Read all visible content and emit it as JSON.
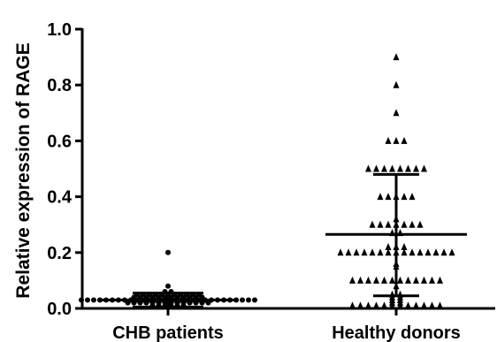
{
  "chart_data": {
    "type": "scatter",
    "title": "",
    "xlabel": "",
    "ylabel": "Relative expression of RAGE",
    "ylim": [
      0,
      1.0
    ],
    "yticks": [
      "0.0",
      "0.2",
      "0.4",
      "0.6",
      "0.8",
      "1.0"
    ],
    "categories": [
      "CHB patients",
      "Healthy donors"
    ],
    "grid": false,
    "legend": "none",
    "colors": {
      "marker": "#000000",
      "axis": "#000000"
    },
    "series": [
      {
        "category": "CHB patients",
        "marker": "circle",
        "mean": 0.03,
        "sd_upper": 0.055,
        "sd_lower": 0.005,
        "values": [
          0.2,
          0.08,
          0.06,
          0.06,
          0.05,
          0.05,
          0.05,
          0.05,
          0.05,
          0.05,
          0.05,
          0.05,
          0.05,
          0.05,
          0.05,
          0.04,
          0.04,
          0.04,
          0.04,
          0.04,
          0.04,
          0.04,
          0.04,
          0.04,
          0.04,
          0.04,
          0.04,
          0.03,
          0.03,
          0.03,
          0.03,
          0.03,
          0.03,
          0.03,
          0.03,
          0.03,
          0.03,
          0.03,
          0.03,
          0.03,
          0.03,
          0.03,
          0.03,
          0.03,
          0.03,
          0.03,
          0.03,
          0.03,
          0.03,
          0.03,
          0.03,
          0.03,
          0.03,
          0.03,
          0.03,
          0.03,
          0.02,
          0.02,
          0.02,
          0.02,
          0.02,
          0.02,
          0.02,
          0.02,
          0.02,
          0.02,
          0.02,
          0.02,
          0.02,
          0.02,
          0.01,
          0.01,
          0.01,
          0.01,
          0.01,
          0.01
        ]
      },
      {
        "category": "Healthy donors",
        "marker": "triangle",
        "mean": 0.265,
        "sd_upper": 0.48,
        "sd_lower": 0.045,
        "values": [
          0.9,
          0.8,
          0.7,
          0.6,
          0.6,
          0.6,
          0.5,
          0.5,
          0.5,
          0.5,
          0.5,
          0.5,
          0.5,
          0.5,
          0.4,
          0.4,
          0.4,
          0.4,
          0.4,
          0.32,
          0.3,
          0.3,
          0.3,
          0.3,
          0.3,
          0.3,
          0.3,
          0.27,
          0.27,
          0.22,
          0.22,
          0.22,
          0.2,
          0.2,
          0.2,
          0.2,
          0.2,
          0.2,
          0.2,
          0.2,
          0.2,
          0.2,
          0.2,
          0.2,
          0.2,
          0.2,
          0.2,
          0.16,
          0.15,
          0.1,
          0.1,
          0.1,
          0.1,
          0.1,
          0.1,
          0.1,
          0.1,
          0.1,
          0.1,
          0.1,
          0.1,
          0.08,
          0.05,
          0.05,
          0.04,
          0.04,
          0.03,
          0.03,
          0.02,
          0.02,
          0.01,
          0.01,
          0.01,
          0.01,
          0.01,
          0.01,
          0.01,
          0.01,
          0.01,
          0.01,
          0.01,
          0.01
        ]
      }
    ]
  }
}
